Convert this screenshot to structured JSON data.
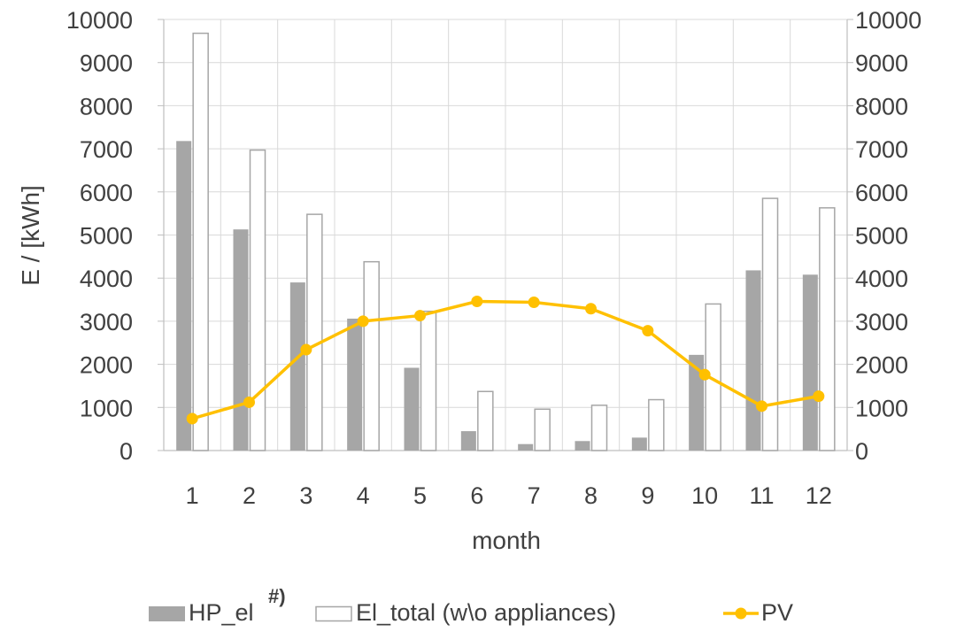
{
  "chart_data": {
    "type": "bar",
    "xlabel": "month",
    "ylabel": "E / [kWh]",
    "categories": [
      "1",
      "2",
      "3",
      "4",
      "5",
      "6",
      "7",
      "8",
      "9",
      "10",
      "11",
      "12"
    ],
    "ylim": [
      0,
      10000
    ],
    "y_ticks": [
      "0",
      "1000",
      "2000",
      "3000",
      "4000",
      "5000",
      "6000",
      "7000",
      "8000",
      "9000",
      "10000"
    ],
    "y2_ticks": [
      "0",
      "1000",
      "2000",
      "3000",
      "4000",
      "5000",
      "6000",
      "7000",
      "8000",
      "9000",
      "10000"
    ],
    "grid": true,
    "legend_position": "bottom",
    "series": [
      {
        "name": "HP_el",
        "name_superscript": "#)",
        "kind": "bar",
        "color": "#a6a6a6",
        "values": [
          7180,
          5130,
          3900,
          3060,
          1920,
          450,
          150,
          220,
          300,
          2220,
          4180,
          4080
        ]
      },
      {
        "name": "El_total (w\\o appliances)",
        "kind": "bar",
        "color": "#ffffff",
        "stroke": "#a6a6a6",
        "values": [
          9680,
          6970,
          5480,
          4380,
          3230,
          1370,
          960,
          1050,
          1180,
          3400,
          5850,
          5630
        ]
      },
      {
        "name": "PV",
        "kind": "line",
        "color": "#ffc000",
        "values": [
          740,
          1120,
          2340,
          3000,
          3130,
          3460,
          3440,
          3290,
          2780,
          1760,
          1030,
          1260
        ]
      }
    ]
  }
}
